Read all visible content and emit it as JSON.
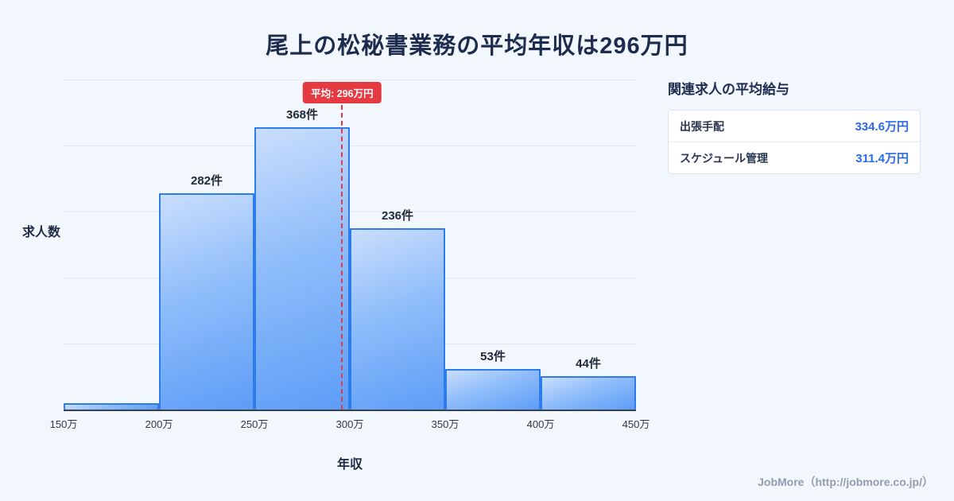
{
  "title": "尾上の松秘書業務の平均年収は296万円",
  "chart_data": {
    "type": "bar",
    "subtype": "histogram",
    "categories": [
      "150万-200万",
      "200万-250万",
      "250万-300万",
      "300万-350万",
      "350万-400万",
      "400万-450万"
    ],
    "values": [
      8,
      282,
      368,
      236,
      53,
      44
    ],
    "bar_labels": [
      "",
      "282件",
      "368件",
      "236件",
      "53件",
      "44件"
    ],
    "bin_edges_labels": [
      "150万",
      "200万",
      "250万",
      "300万",
      "350万",
      "400万",
      "450万"
    ],
    "bin_edges_values": [
      150,
      200,
      250,
      300,
      350,
      400,
      450
    ],
    "title": "尾上の松秘書業務の平均年収は296万円",
    "xlabel": "年収",
    "ylabel": "求人数",
    "ylim": [
      0,
      430
    ],
    "grid": true,
    "average": {
      "value": 296,
      "label": "平均: 296万円"
    },
    "colors": {
      "bar_fill_top": "#cadefc",
      "bar_fill_bottom": "#5d9df7",
      "bar_border": "#2e7ceb",
      "average_line": "#e63a43",
      "gridline": "#e2e9f4",
      "background": "#f2f7fd",
      "title_text": "#1d2b4f"
    }
  },
  "side_panel": {
    "title": "関連求人の平均給与",
    "rows": [
      {
        "label": "出張手配",
        "value": "334.6万円"
      },
      {
        "label": "スケジュール管理",
        "value": "311.4万円"
      }
    ]
  },
  "footer": {
    "credit": "JobMore（http://jobmore.co.jp/）"
  }
}
